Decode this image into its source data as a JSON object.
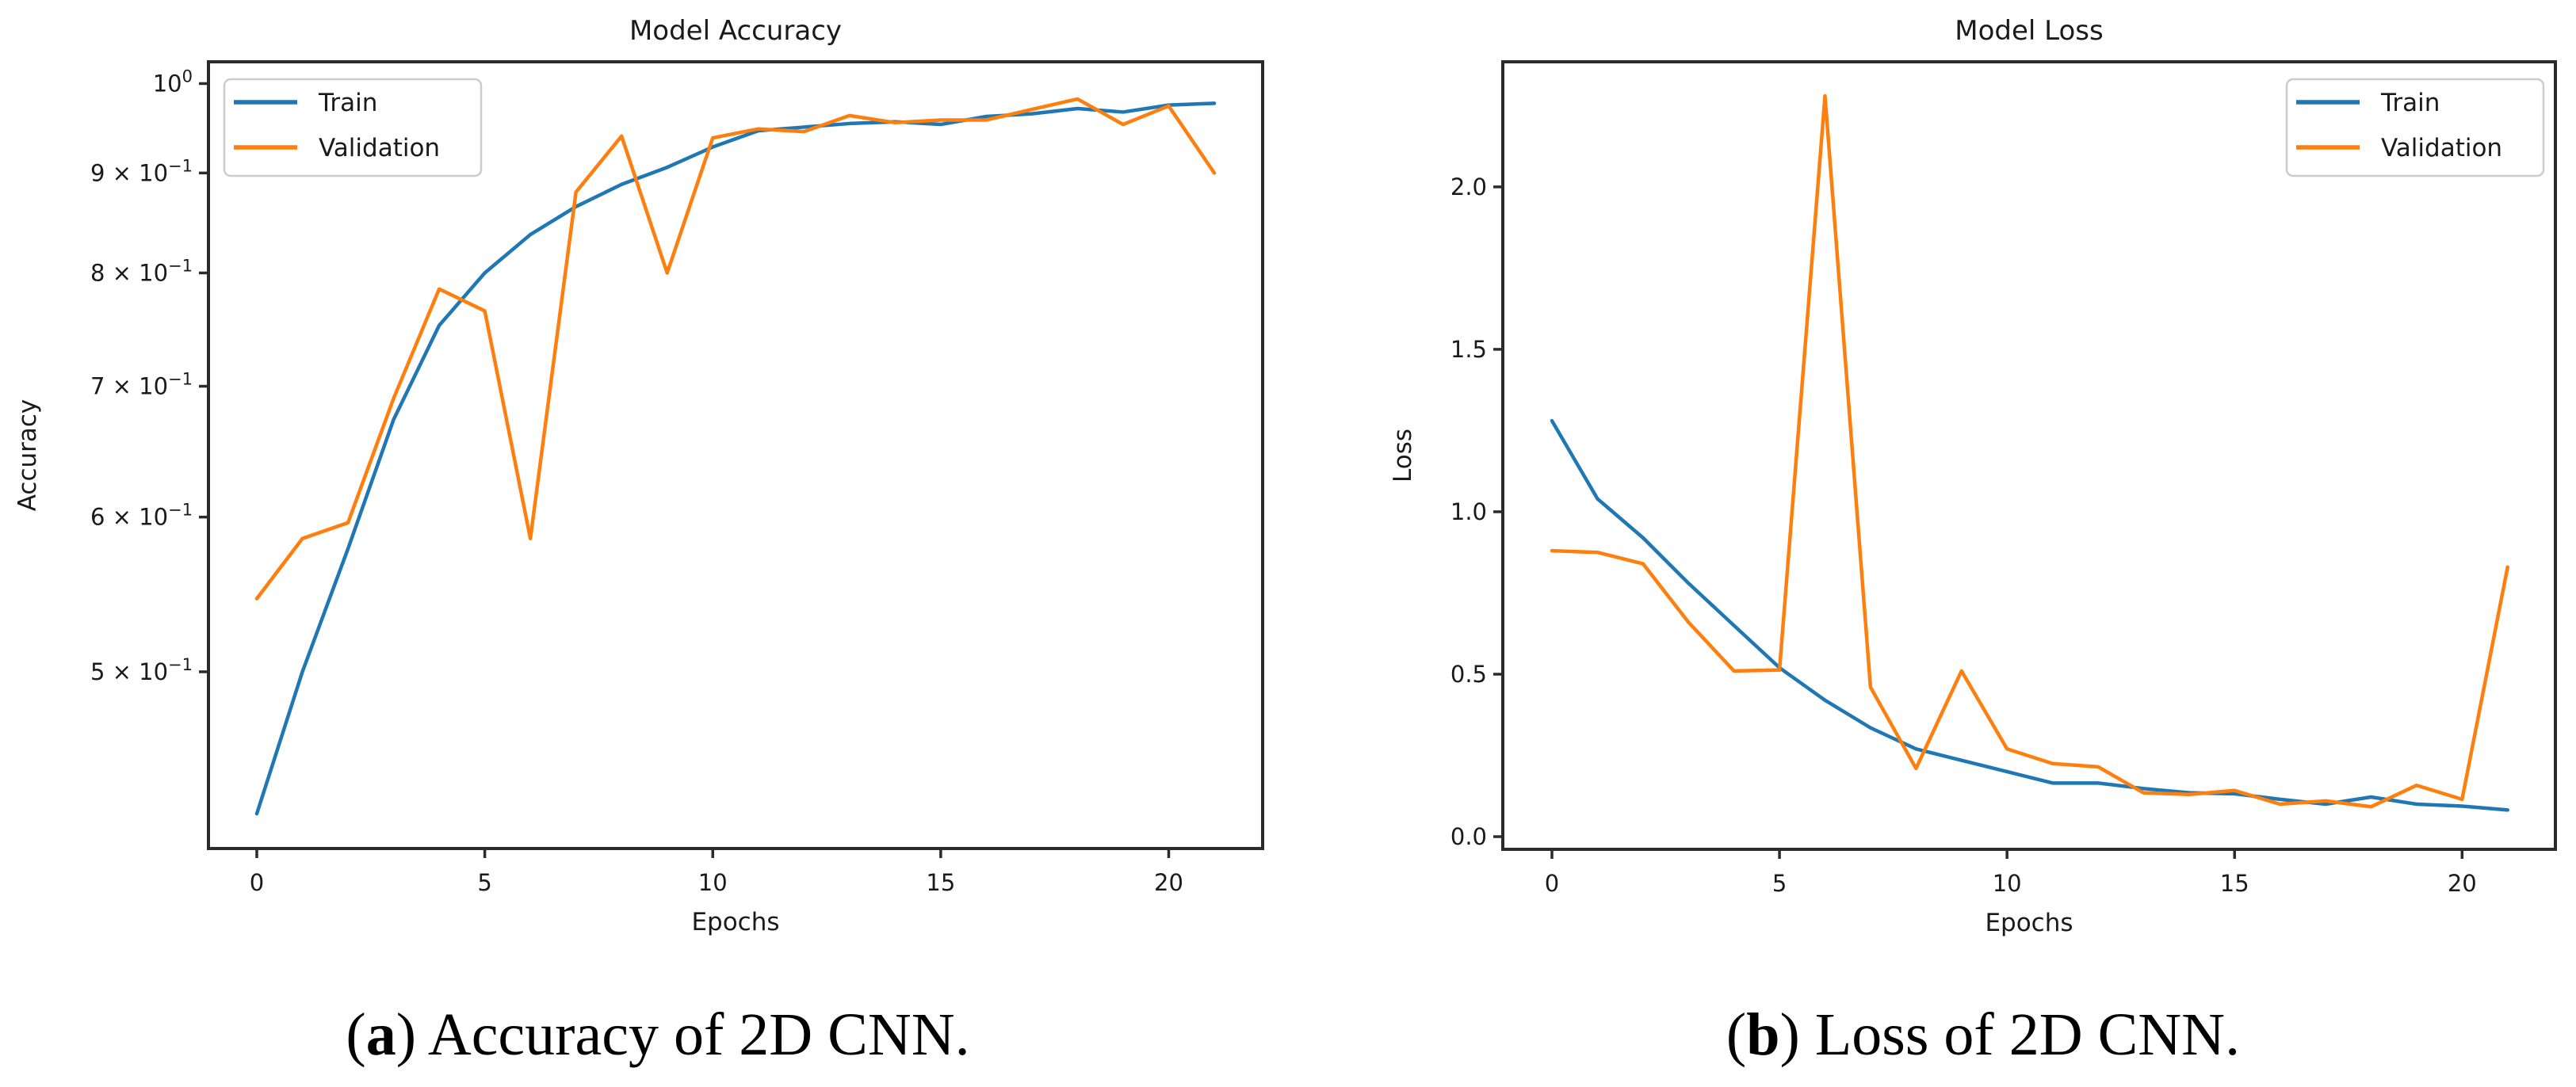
{
  "captions": [
    {
      "open": "(",
      "letter": "a",
      "rest": ") Accuracy of 2D CNN."
    },
    {
      "open": "(",
      "letter": "b",
      "rest": ") Loss of 2D CNN."
    }
  ],
  "colors": {
    "train": "#1f77b4",
    "validation": "#ff7f0e",
    "spine": "#2b2b2b",
    "text": "#1a1a1a",
    "legend_border": "#cccccc",
    "background": "#ffffff"
  },
  "chart_data": [
    {
      "type": "line",
      "title": "Model Accuracy",
      "xlabel": "Epochs",
      "ylabel": "Accuracy",
      "yscale": "log",
      "grid": false,
      "xlim": [
        -1.06,
        22.06
      ],
      "ylim": [
        0.406,
        1.026
      ],
      "xticks": [
        0,
        5,
        10,
        15,
        20
      ],
      "yticks": [
        {
          "value": 1.0,
          "coef": "10",
          "exp": "0"
        },
        {
          "value": 0.9,
          "coef": "9 × 10",
          "exp": "−1"
        },
        {
          "value": 0.8,
          "coef": "8 × 10",
          "exp": "−1"
        },
        {
          "value": 0.7,
          "coef": "7 × 10",
          "exp": "−1"
        },
        {
          "value": 0.6,
          "coef": "6 × 10",
          "exp": "−1"
        },
        {
          "value": 0.5,
          "coef": "5 × 10",
          "exp": "−1"
        }
      ],
      "legend": {
        "loc": "upper-left",
        "entries": [
          "Train",
          "Validation"
        ]
      },
      "x": [
        0,
        1,
        2,
        3,
        4,
        5,
        6,
        7,
        8,
        9,
        10,
        11,
        12,
        13,
        14,
        15,
        16,
        17,
        18,
        19,
        20,
        21
      ],
      "series": [
        {
          "name": "Train",
          "color_key": "train",
          "values": [
            0.423,
            0.5,
            0.578,
            0.673,
            0.752,
            0.8,
            0.837,
            0.865,
            0.888,
            0.906,
            0.928,
            0.946,
            0.95,
            0.954,
            0.956,
            0.953,
            0.962,
            0.965,
            0.971,
            0.967,
            0.975,
            0.977
          ]
        },
        {
          "name": "Validation",
          "color_key": "validation",
          "values": [
            0.545,
            0.585,
            0.596,
            0.69,
            0.785,
            0.765,
            0.585,
            0.88,
            0.94,
            0.8,
            0.938,
            0.948,
            0.945,
            0.963,
            0.955,
            0.958,
            0.958,
            0.97,
            0.982,
            0.953,
            0.974,
            0.9
          ]
        }
      ]
    },
    {
      "type": "line",
      "title": "Model Loss",
      "xlabel": "Epochs",
      "ylabel": "Loss",
      "yscale": "linear",
      "grid": false,
      "xlim": [
        -1.08,
        22.05
      ],
      "ylim": [
        -0.039,
        2.385
      ],
      "xticks": [
        0,
        5,
        10,
        15,
        20
      ],
      "yticks": [
        {
          "value": 0.0,
          "label": "0.0"
        },
        {
          "value": 0.5,
          "label": "0.5"
        },
        {
          "value": 1.0,
          "label": "1.0"
        },
        {
          "value": 1.5,
          "label": "1.5"
        },
        {
          "value": 2.0,
          "label": "2.0"
        }
      ],
      "legend": {
        "loc": "upper-right",
        "entries": [
          "Train",
          "Validation"
        ]
      },
      "x": [
        0,
        1,
        2,
        3,
        4,
        5,
        6,
        7,
        8,
        9,
        10,
        11,
        12,
        13,
        14,
        15,
        16,
        17,
        18,
        19,
        20,
        21
      ],
      "series": [
        {
          "name": "Train",
          "color_key": "train",
          "values": [
            1.28,
            1.04,
            0.92,
            0.78,
            0.65,
            0.52,
            0.42,
            0.335,
            0.27,
            0.235,
            0.2,
            0.165,
            0.165,
            0.148,
            0.135,
            0.132,
            0.115,
            0.1,
            0.122,
            0.1,
            0.094,
            0.082
          ]
        },
        {
          "name": "Validation",
          "color_key": "validation",
          "values": [
            0.88,
            0.875,
            0.84,
            0.66,
            0.51,
            0.513,
            2.28,
            0.46,
            0.21,
            0.51,
            0.27,
            0.225,
            0.215,
            0.135,
            0.13,
            0.142,
            0.1,
            0.11,
            0.092,
            0.158,
            0.115,
            0.83
          ]
        }
      ]
    }
  ]
}
